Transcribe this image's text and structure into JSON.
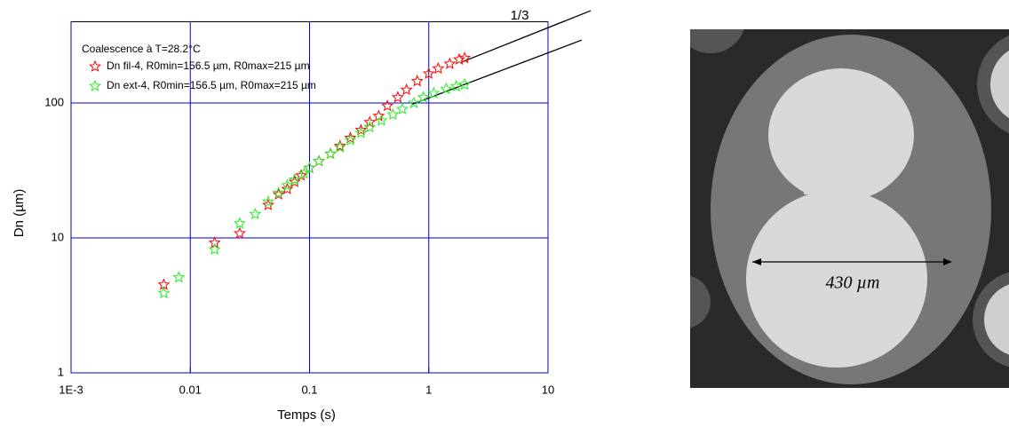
{
  "chart_data": {
    "type": "scatter",
    "legend_title": "Coalescence à T=28.2°C",
    "xlabel": "Temps (s)",
    "ylabel": "Dn (µm)",
    "annotation": "1/3",
    "log_x": true,
    "log_y": true,
    "grid": true,
    "grid_color": "#0000cc",
    "xlim": [
      0.001,
      10
    ],
    "ylim": [
      1,
      400
    ],
    "xticks": [
      {
        "value": 0.001,
        "label": "1E-3"
      },
      0.01,
      0.1,
      1,
      10
    ],
    "yticks": [
      1,
      10,
      100
    ],
    "series": [
      {
        "name": "Dn fil-4, R0min=156.5 µm, R0max=215 µm",
        "color": "#ff0000",
        "x": [
          0.006,
          0.016,
          0.026,
          0.045,
          0.055,
          0.065,
          0.075,
          0.085,
          0.1,
          0.12,
          0.15,
          0.18,
          0.22,
          0.27,
          0.32,
          0.38,
          0.45,
          0.55,
          0.65,
          0.8,
          1.0,
          1.2,
          1.5,
          1.8,
          2.0
        ],
        "values": [
          4.5,
          9.2,
          10.8,
          17.5,
          21,
          23,
          26,
          29,
          33,
          37,
          42,
          48,
          55,
          63,
          72,
          80,
          95,
          110,
          125,
          145,
          165,
          180,
          195,
          210,
          215
        ]
      },
      {
        "name": "Dn ext-4, R0min=156.5 µm, R0max=215 µm",
        "color": "#22ee22",
        "x": [
          0.006,
          0.008,
          0.016,
          0.026,
          0.035,
          0.045,
          0.055,
          0.065,
          0.075,
          0.09,
          0.1,
          0.12,
          0.15,
          0.18,
          0.22,
          0.27,
          0.32,
          0.4,
          0.5,
          0.6,
          0.75,
          0.9,
          1.1,
          1.4,
          1.7,
          2.0
        ],
        "values": [
          3.9,
          5.1,
          8.2,
          12.8,
          15,
          18.5,
          21.5,
          24.5,
          27,
          30,
          33,
          37,
          42,
          47,
          53,
          60,
          66,
          74,
          82,
          90,
          100,
          110,
          118,
          127,
          133,
          137
        ]
      }
    ],
    "fit_lines": [
      {
        "x": [
          1.89,
          22.8
        ],
        "values": [
          201,
          483
        ],
        "color": "#000000"
      },
      {
        "x": [
          0.73,
          19.2
        ],
        "values": [
          98,
          293
        ],
        "color": "#000000"
      }
    ]
  },
  "image": {
    "annotation": "430 µm"
  }
}
